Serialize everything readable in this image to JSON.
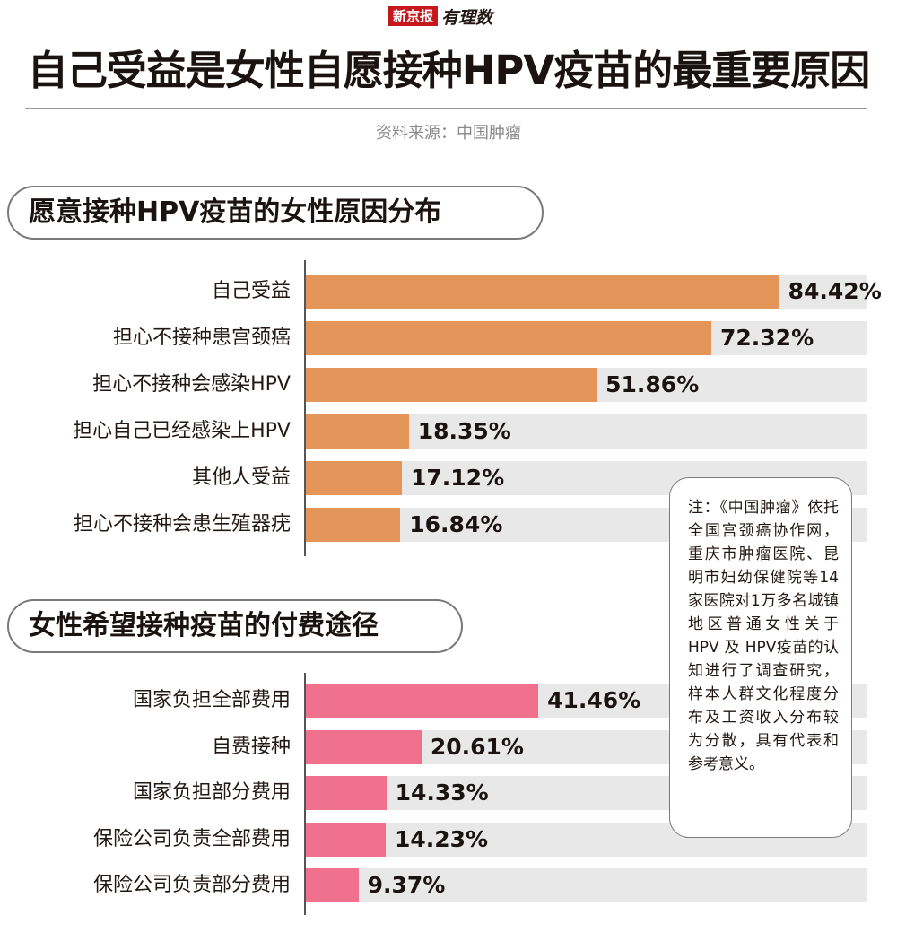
{
  "logo": {
    "brand": "新京报",
    "column": "有理数"
  },
  "title": "自己受益是女性自愿接种HPV疫苗的最重要原因",
  "source": "资料来源：中国肿瘤",
  "note": "注：《中国肿瘤》依托全国宫颈癌协作网，重庆市肿瘤医院、昆明市妇幼保健院等14 家医院对1万多名城镇地区普通女性关于HPV 及 HPV疫苗的认知进行了调查研究，样本人群文化程度分布及工资收入分布较为分散，具有代表和参考意义。",
  "colors": {
    "chart1_bar": "#e4965a",
    "chart2_bar": "#f0718d",
    "track": "#e8e8e8"
  },
  "chart_data": [
    {
      "type": "bar",
      "orientation": "horizontal",
      "title": "愿意接种HPV疫苗的女性原因分布",
      "categories": [
        "自己受益",
        "担心不接种患宫颈癌",
        "担心不接种会感染HPV",
        "担心自己已经感染上HPV",
        "其他人受益",
        "担心不接种会患生殖器疣"
      ],
      "values": [
        84.42,
        72.32,
        51.86,
        18.35,
        17.12,
        16.84
      ],
      "value_labels": [
        "84.42%",
        "72.32%",
        "51.86%",
        "18.35%",
        "17.12%",
        "16.84%"
      ],
      "xlim": [
        0,
        100
      ]
    },
    {
      "type": "bar",
      "orientation": "horizontal",
      "title": "女性希望接种疫苗的付费途径",
      "categories": [
        "国家负担全部费用",
        "自费接种",
        "国家负担部分费用",
        "保险公司负责全部费用",
        "保险公司负责部分费用"
      ],
      "values": [
        41.46,
        20.61,
        14.33,
        14.23,
        9.37
      ],
      "value_labels": [
        "41.46%",
        "20.61%",
        "14.33%",
        "14.23%",
        "9.37%"
      ],
      "xlim": [
        0,
        100
      ]
    }
  ]
}
